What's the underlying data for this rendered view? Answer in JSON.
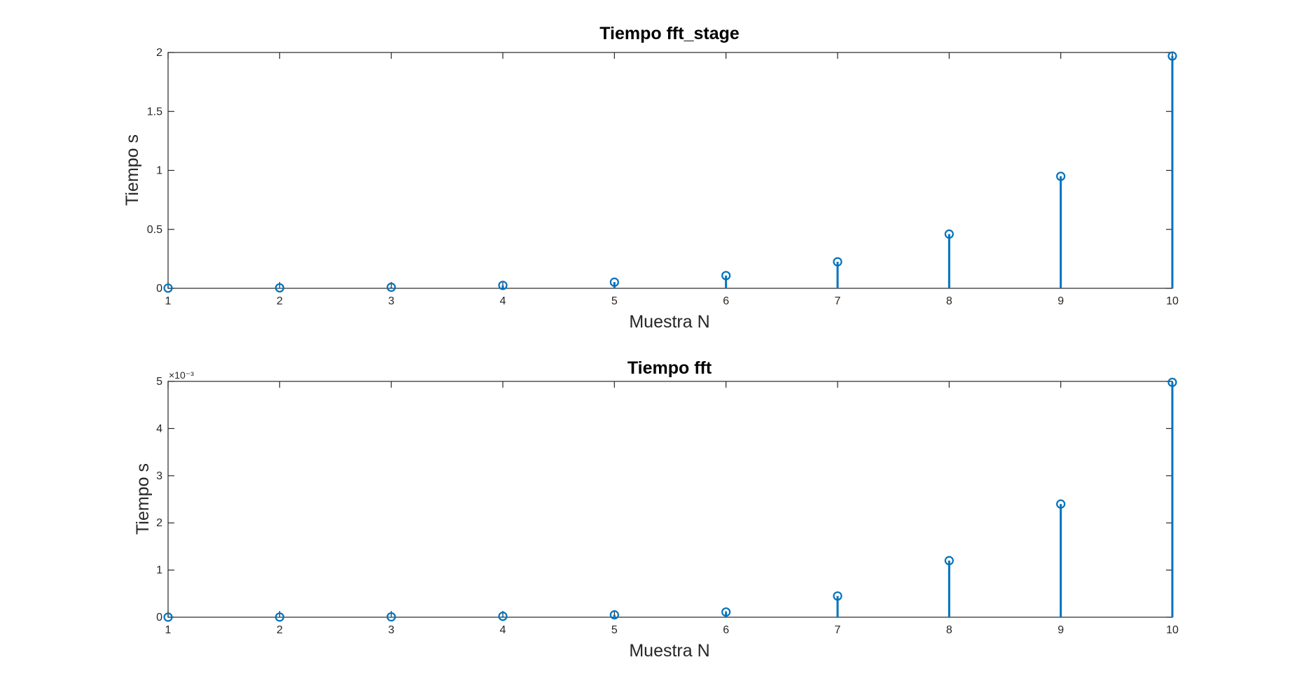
{
  "chart_data": [
    {
      "type": "stem",
      "title": "Tiempo fft_stage",
      "xlabel": "Muestra N",
      "ylabel": "Tiempo s",
      "color": "#0072BD",
      "x": [
        1,
        2,
        3,
        4,
        5,
        6,
        7,
        8,
        9,
        10
      ],
      "y": [
        0.002,
        0.004,
        0.009,
        0.025,
        0.052,
        0.108,
        0.225,
        0.46,
        0.95,
        1.97
      ],
      "xlim": [
        1,
        10
      ],
      "ylim": [
        0,
        2
      ],
      "xticks": [
        1,
        2,
        3,
        4,
        5,
        6,
        7,
        8,
        9,
        10
      ],
      "xtick_labels": [
        "1",
        "2",
        "3",
        "4",
        "5",
        "6",
        "7",
        "8",
        "9",
        "10"
      ],
      "yticks": [
        0,
        0.5,
        1,
        1.5,
        2
      ],
      "ytick_labels": [
        "0",
        "0.5",
        "1",
        "1.5",
        "2"
      ],
      "exponent_label": "",
      "grid": false
    },
    {
      "type": "stem",
      "title": "Tiempo fft",
      "xlabel": "Muestra N",
      "ylabel": "Tiempo s",
      "color": "#0072BD",
      "x": [
        1,
        2,
        3,
        4,
        5,
        6,
        7,
        8,
        9,
        10
      ],
      "y": [
        2e-06,
        4e-06,
        8e-06,
        2e-05,
        5e-05,
        0.00011,
        0.00045,
        0.0012,
        0.0024,
        0.00498
      ],
      "xlim": [
        1,
        10
      ],
      "ylim": [
        0,
        0.005
      ],
      "xticks": [
        1,
        2,
        3,
        4,
        5,
        6,
        7,
        8,
        9,
        10
      ],
      "xtick_labels": [
        "1",
        "2",
        "3",
        "4",
        "5",
        "6",
        "7",
        "8",
        "9",
        "10"
      ],
      "yticks": [
        0,
        0.001,
        0.002,
        0.003,
        0.004,
        0.005
      ],
      "ytick_labels": [
        "0",
        "1",
        "2",
        "3",
        "4",
        "5"
      ],
      "exponent_label": "×10⁻³",
      "grid": false
    }
  ]
}
